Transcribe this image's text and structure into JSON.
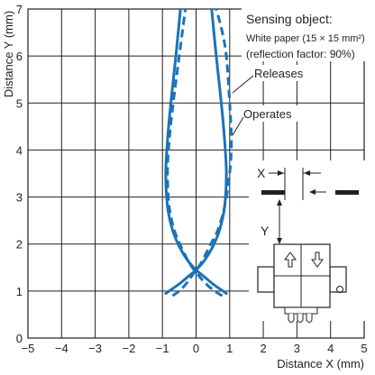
{
  "chart_data": {
    "type": "line",
    "xlabel": "Distance X (mm)",
    "ylabel": "Distance Y (mm)",
    "xlim": [
      -5,
      5
    ],
    "ylim": [
      0,
      7
    ],
    "grid": true,
    "x_ticks": [
      "−5",
      "−4",
      "−3",
      "−2",
      "−1",
      "0",
      "1",
      "2",
      "3",
      "4",
      "5"
    ],
    "y_ticks": [
      "0",
      "1",
      "2",
      "3",
      "4",
      "5",
      "6",
      "7"
    ],
    "series": [
      {
        "name": "Operates",
        "style": "solid",
        "color": "#1a73b9",
        "curves": [
          {
            "x": [
              -0.45,
              -0.6,
              -0.75,
              -0.85,
              -0.9,
              -0.85,
              -0.7,
              -0.5,
              -0.25,
              0,
              0.25,
              0.5,
              0.7,
              0.9
            ],
            "y": [
              7.1,
              6.0,
              5.0,
              4.2,
              3.5,
              2.8,
              2.3,
              1.95,
              1.65,
              1.45,
              1.3,
              1.15,
              1.05,
              0.95
            ]
          },
          {
            "x": [
              -0.9,
              -0.7,
              -0.5,
              -0.25,
              0,
              0.25,
              0.5,
              0.7,
              0.85,
              0.9,
              0.85,
              0.75,
              0.6,
              0.45
            ],
            "y": [
              0.95,
              1.05,
              1.15,
              1.3,
              1.45,
              1.65,
              1.95,
              2.3,
              2.8,
              3.5,
              4.2,
              5.0,
              6.0,
              7.1
            ]
          }
        ]
      },
      {
        "name": "Releases",
        "style": "dashed",
        "color": "#1a73b9",
        "curves": [
          {
            "x": [
              -0.3,
              -0.5,
              -0.68,
              -0.8,
              -0.85,
              -0.8,
              -0.65,
              -0.45,
              -0.2,
              0.05,
              0.3,
              0.55,
              0.78
            ],
            "y": [
              7.1,
              6.0,
              5.0,
              4.2,
              3.5,
              2.8,
              2.3,
              1.95,
              1.6,
              1.35,
              1.15,
              1.0,
              0.9
            ]
          },
          {
            "x": [
              -0.7,
              -0.5,
              -0.3,
              -0.1,
              0.15,
              0.4,
              0.65,
              0.85,
              1.0,
              1.05,
              1.0,
              0.9,
              0.75,
              0.55
            ],
            "y": [
              0.9,
              1.0,
              1.15,
              1.35,
              1.6,
              1.95,
              2.3,
              2.8,
              3.5,
              4.2,
              5.0,
              6.0,
              6.6,
              7.1
            ]
          }
        ]
      }
    ],
    "annotations": {
      "sensing_title": "Sensing object:",
      "sensing_line2": "White paper (15 × 15 mm²)",
      "sensing_line3": "(reflection factor: 90%)",
      "releases_label": "Releases",
      "operates_label": "Operates",
      "diagram_x": "X",
      "diagram_y": "Y"
    }
  }
}
